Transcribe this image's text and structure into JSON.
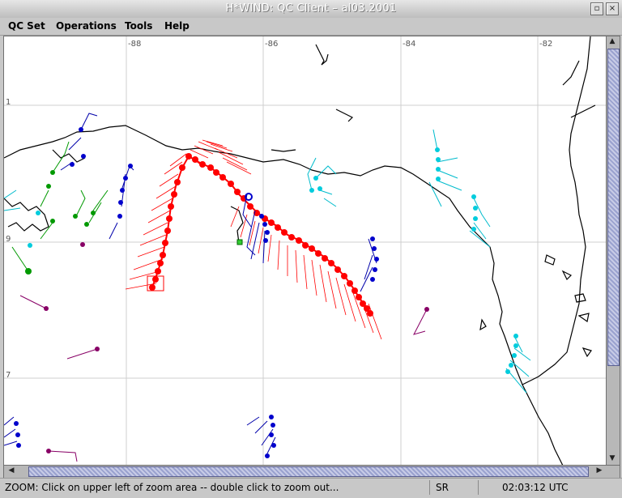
{
  "window": {
    "title": "H*WIND: QC Client – al03.2001"
  },
  "menu": {
    "items": [
      "QC Set",
      "Operations",
      "Tools",
      "Help"
    ]
  },
  "map": {
    "lon_labels": [
      "-88",
      "-86",
      "-84",
      "-82"
    ],
    "lat_labels": [
      "1",
      "9",
      "7"
    ]
  },
  "status": {
    "message": "ZOOM: Click on upper left of zoom area -- double click to zoom out...",
    "mode": "SR",
    "time": "02:03:12 UTC"
  },
  "colors": {
    "track": "#ff0000",
    "buoy": "#0000cc",
    "cman": "#00cccc",
    "land": "#009900",
    "ship": "#880066"
  }
}
